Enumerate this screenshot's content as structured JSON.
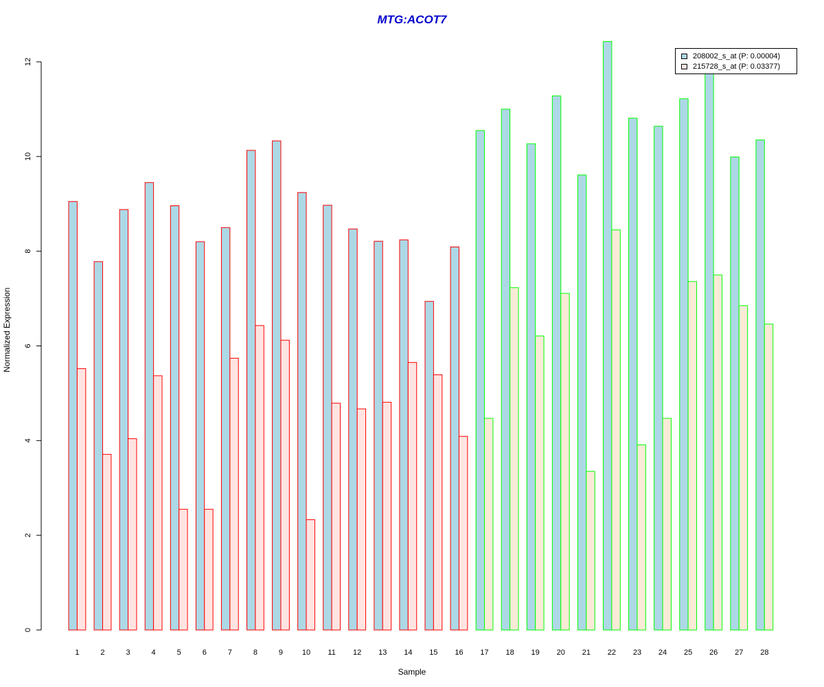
{
  "chart_data": {
    "type": "bar",
    "title": "MTG:ACOT7",
    "title_color": "#0000CC",
    "xlabel": "Sample",
    "ylabel": "Normalized Expression",
    "ylim": [
      0,
      12
    ],
    "yticks": [
      "0",
      "2",
      "4",
      "6",
      "8",
      "10",
      "12"
    ],
    "categories": [
      "1",
      "2",
      "3",
      "4",
      "5",
      "6",
      "7",
      "8",
      "9",
      "10",
      "11",
      "12",
      "13",
      "14",
      "15",
      "16",
      "17",
      "18",
      "19",
      "20",
      "21",
      "22",
      "23",
      "24",
      "25",
      "26",
      "27",
      "28"
    ],
    "grid": false,
    "legend_position": "top-right",
    "series": [
      {
        "name": "208002_s_at (P: 0.00004)",
        "fill": "#ADD8E6",
        "values": [
          9.05,
          7.78,
          8.88,
          9.45,
          8.96,
          8.2,
          8.5,
          10.13,
          10.33,
          9.24,
          8.97,
          8.47,
          8.21,
          8.24,
          6.94,
          8.09,
          10.55,
          11.0,
          10.27,
          11.28,
          9.61,
          12.43,
          10.81,
          10.64,
          11.22,
          11.84,
          9.99,
          10.35
        ]
      },
      {
        "name": "215728_s_at (P: 0.03377)",
        "fill_group1": "#FFE4E1",
        "fill_group2": "#FAEBD7",
        "values": [
          5.52,
          3.71,
          4.04,
          5.37,
          2.55,
          2.55,
          5.74,
          6.43,
          6.12,
          2.33,
          4.79,
          4.67,
          4.81,
          5.65,
          5.39,
          4.09,
          4.47,
          7.23,
          6.21,
          7.11,
          3.35,
          8.45,
          3.91,
          4.47,
          7.36,
          7.5,
          6.85,
          6.46
        ]
      }
    ],
    "groups": [
      {
        "samples": [
          1,
          16
        ],
        "border": "#FF0000"
      },
      {
        "samples": [
          17,
          28
        ],
        "border": "#00FF00"
      }
    ]
  }
}
